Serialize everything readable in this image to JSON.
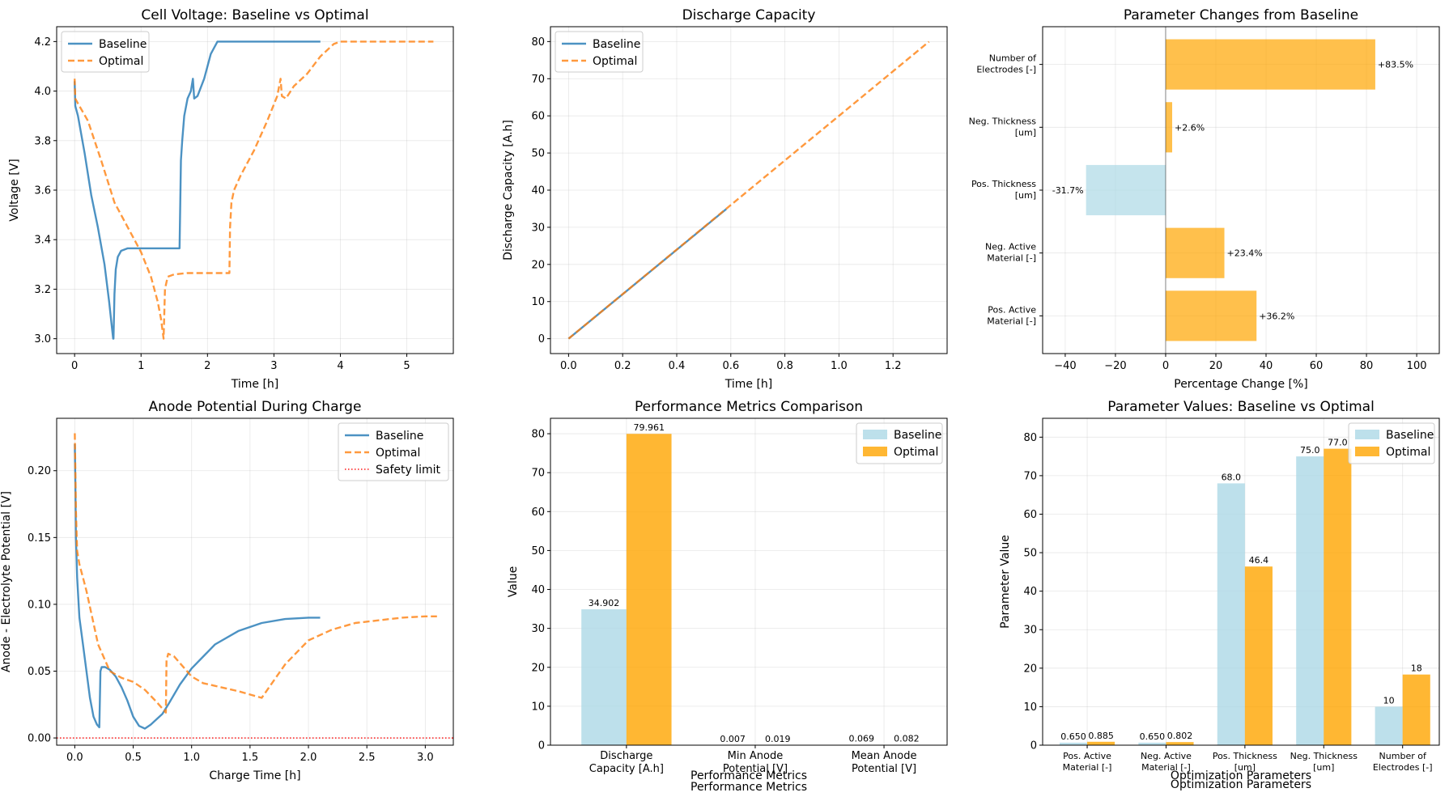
{
  "colors": {
    "baseline_line": "#1f77b4",
    "optimal_line": "#ff7f0e",
    "bar_base": "#add8e6",
    "bar_opt": "#ffa500",
    "safety": "#ff0000"
  },
  "chart_data": [
    {
      "id": "cell-voltage",
      "type": "line",
      "title": "Cell Voltage: Baseline vs Optimal",
      "xlabel": "Time [h]",
      "ylabel": "Voltage [V]",
      "xlim": [
        -0.27,
        5.7
      ],
      "ylim": [
        2.94,
        4.26
      ],
      "xticks": [
        0,
        1,
        2,
        3,
        4,
        5
      ],
      "yticks": [
        3.0,
        3.2,
        3.4,
        3.6,
        3.8,
        4.0,
        4.2
      ],
      "ytick_labels": [
        "3.0",
        "3.2",
        "3.4",
        "3.6",
        "3.8",
        "4.0",
        "4.2"
      ],
      "legend": [
        "Baseline",
        "Optimal"
      ],
      "legend_loc": "upper-left",
      "series": [
        {
          "name": "Baseline",
          "style": "solid",
          "x": [
            0,
            0.01,
            0.05,
            0.15,
            0.25,
            0.35,
            0.45,
            0.52,
            0.56,
            0.58,
            0.585,
            0.6,
            0.62,
            0.65,
            0.7,
            0.8,
            1.0,
            1.3,
            1.58,
            1.59,
            1.6,
            1.62,
            1.65,
            1.7,
            1.75,
            1.78,
            1.8,
            1.85,
            1.95,
            2.05,
            2.15,
            2.2,
            2.5,
            3.0,
            3.7
          ],
          "y": [
            4.04,
            3.94,
            3.9,
            3.75,
            3.58,
            3.45,
            3.3,
            3.15,
            3.05,
            3.0,
            3.0,
            3.18,
            3.28,
            3.33,
            3.355,
            3.365,
            3.365,
            3.365,
            3.365,
            3.55,
            3.72,
            3.8,
            3.9,
            3.97,
            4.0,
            4.05,
            3.97,
            3.98,
            4.05,
            4.15,
            4.2,
            4.2,
            4.2,
            4.2,
            4.2
          ]
        },
        {
          "name": "Optimal",
          "style": "dashed",
          "x": [
            0,
            0.01,
            0.05,
            0.2,
            0.4,
            0.6,
            0.8,
            1.0,
            1.15,
            1.25,
            1.3,
            1.33,
            1.34,
            1.36,
            1.4,
            1.5,
            1.7,
            2.0,
            2.33,
            2.34,
            2.36,
            2.4,
            2.5,
            2.7,
            2.9,
            3.05,
            3.1,
            3.12,
            3.18,
            3.3,
            3.5,
            3.7,
            3.9,
            4.0,
            4.3,
            5.0,
            5.4
          ],
          "y": [
            4.05,
            3.97,
            3.95,
            3.88,
            3.72,
            3.55,
            3.45,
            3.35,
            3.25,
            3.15,
            3.08,
            3.02,
            3.0,
            3.2,
            3.25,
            3.26,
            3.265,
            3.265,
            3.265,
            3.45,
            3.55,
            3.6,
            3.66,
            3.76,
            3.88,
            3.98,
            4.05,
            3.98,
            3.97,
            4.02,
            4.07,
            4.14,
            4.19,
            4.2,
            4.2,
            4.2,
            4.2
          ]
        }
      ]
    },
    {
      "id": "discharge-capacity",
      "type": "line",
      "title": "Discharge Capacity",
      "xlabel": "Time [h]",
      "ylabel": "Discharge Capacity [A.h]",
      "xlim": [
        -0.067,
        1.4
      ],
      "ylim": [
        -4,
        84
      ],
      "xticks": [
        0,
        0.2,
        0.4,
        0.6,
        0.8,
        1.0,
        1.2
      ],
      "xtick_labels": [
        "0.0",
        "0.2",
        "0.4",
        "0.6",
        "0.8",
        "1.0",
        "1.2"
      ],
      "yticks": [
        0,
        10,
        20,
        30,
        40,
        50,
        60,
        70,
        80
      ],
      "legend": [
        "Baseline",
        "Optimal"
      ],
      "legend_loc": "upper-left",
      "series": [
        {
          "name": "Baseline",
          "style": "solid",
          "x": [
            0,
            0.583
          ],
          "y": [
            0,
            34.902
          ]
        },
        {
          "name": "Optimal",
          "style": "dashed",
          "x": [
            0,
            1.333
          ],
          "y": [
            0,
            79.961
          ]
        }
      ]
    },
    {
      "id": "parameter-changes",
      "type": "bar",
      "orientation": "horizontal",
      "title": "Parameter Changes from Baseline",
      "xlabel": "Percentage Change [%]",
      "ylabel": "",
      "xlim": [
        -49,
        109
      ],
      "xticks": [
        -40,
        -20,
        0,
        20,
        40,
        60,
        80,
        100
      ],
      "xtick_labels": [
        "−40",
        "−20",
        "0",
        "20",
        "40",
        "60",
        "80",
        "100"
      ],
      "categories": [
        [
          "Pos. Active",
          "Material [-]"
        ],
        [
          "Neg. Active",
          "Material [-]"
        ],
        [
          "Pos. Thickness",
          "[um]"
        ],
        [
          "Neg. Thickness",
          "[um]"
        ],
        [
          "Number of",
          "Electrodes [-]"
        ]
      ],
      "values": [
        36.2,
        23.4,
        -31.7,
        2.6,
        83.5
      ],
      "value_labels": [
        "+36.2%",
        "+23.4%",
        "-31.7%",
        "+2.6%",
        "+83.5%"
      ]
    },
    {
      "id": "anode-potential",
      "type": "line",
      "title": "Anode Potential During Charge",
      "xlabel": "Charge Time [h]",
      "ylabel": "Anode - Electrolyte Potential [V]",
      "xlim": [
        -0.155,
        3.24
      ],
      "ylim": [
        -0.0054,
        0.2392
      ],
      "xticks": [
        0,
        0.5,
        1.0,
        1.5,
        2.0,
        2.5,
        3.0
      ],
      "xtick_labels": [
        "0.0",
        "0.5",
        "1.0",
        "1.5",
        "2.0",
        "2.5",
        "3.0"
      ],
      "yticks": [
        0,
        0.05,
        0.1,
        0.15,
        0.2
      ],
      "ytick_labels": [
        "0.00",
        "0.05",
        "0.10",
        "0.15",
        "0.20"
      ],
      "legend": [
        "Baseline",
        "Optimal",
        "Safety limit"
      ],
      "legend_loc": "upper-right",
      "series": [
        {
          "name": "Baseline",
          "style": "solid",
          "x": [
            0,
            0.005,
            0.01,
            0.02,
            0.04,
            0.07,
            0.1,
            0.13,
            0.16,
            0.19,
            0.21,
            0.22,
            0.23,
            0.26,
            0.3,
            0.35,
            0.4,
            0.45,
            0.5,
            0.55,
            0.6,
            0.65,
            0.7,
            0.75,
            0.8,
            0.9,
            1.0,
            1.2,
            1.4,
            1.6,
            1.8,
            2.0,
            2.1
          ],
          "y": [
            0.22,
            0.19,
            0.15,
            0.12,
            0.09,
            0.07,
            0.05,
            0.03,
            0.016,
            0.01,
            0.008,
            0.05,
            0.053,
            0.053,
            0.051,
            0.046,
            0.038,
            0.028,
            0.016,
            0.009,
            0.007,
            0.01,
            0.014,
            0.018,
            0.025,
            0.04,
            0.052,
            0.07,
            0.08,
            0.086,
            0.089,
            0.09,
            0.09
          ]
        },
        {
          "name": "Optimal",
          "style": "dashed",
          "x": [
            0,
            0.005,
            0.01,
            0.02,
            0.04,
            0.07,
            0.1,
            0.15,
            0.2,
            0.3,
            0.4,
            0.5,
            0.6,
            0.7,
            0.78,
            0.785,
            0.8,
            0.85,
            0.9,
            1.0,
            1.1,
            1.2,
            1.4,
            1.6,
            1.8,
            2.0,
            2.2,
            2.4,
            2.6,
            2.8,
            3.0,
            3.1
          ],
          "y": [
            0.228,
            0.2,
            0.17,
            0.14,
            0.13,
            0.12,
            0.11,
            0.09,
            0.07,
            0.05,
            0.045,
            0.042,
            0.036,
            0.027,
            0.019,
            0.058,
            0.063,
            0.061,
            0.056,
            0.046,
            0.041,
            0.039,
            0.035,
            0.03,
            0.055,
            0.073,
            0.081,
            0.086,
            0.088,
            0.09,
            0.091,
            0.091
          ]
        },
        {
          "name": "Safety limit",
          "style": "dotted",
          "x": [
            -0.155,
            3.24
          ],
          "y": [
            0,
            0
          ]
        }
      ]
    },
    {
      "id": "performance-metrics",
      "type": "bar",
      "title": "Performance Metrics Comparison",
      "xlabel": "Performance Metrics",
      "ylabel": "Value",
      "ylim": [
        0,
        83.96
      ],
      "yticks": [
        0,
        10,
        20,
        30,
        40,
        50,
        60,
        70,
        80
      ],
      "categories": [
        [
          "Discharge",
          "Capacity [A.h]"
        ],
        [
          "Min Anode",
          "Potential [V]"
        ],
        [
          "Mean Anode",
          "Potential [V]"
        ]
      ],
      "series": [
        {
          "name": "Baseline",
          "values": [
            34.902,
            0.007,
            0.069
          ],
          "labels": [
            "34.902",
            "0.007",
            "0.069"
          ]
        },
        {
          "name": "Optimal",
          "values": [
            79.961,
            0.019,
            0.082
          ],
          "labels": [
            "79.961",
            "0.019",
            "0.082"
          ]
        }
      ],
      "legend": [
        "Baseline",
        "Optimal"
      ],
      "legend_loc": "upper-right"
    },
    {
      "id": "parameter-values",
      "type": "bar",
      "title": "Parameter Values: Baseline vs Optimal",
      "xlabel": "Optimization Parameters",
      "ylabel": "Parameter Value",
      "ylim": [
        0,
        84.9
      ],
      "yticks": [
        0,
        10,
        20,
        30,
        40,
        50,
        60,
        70,
        80
      ],
      "categories": [
        [
          "Pos. Active",
          "Material [-]"
        ],
        [
          "Neg. Active",
          "Material [-]"
        ],
        [
          "Pos. Thickness",
          "[um]"
        ],
        [
          "Neg. Thickness",
          "[um]"
        ],
        [
          "Number of",
          "Electrodes [-]"
        ]
      ],
      "series": [
        {
          "name": "Baseline",
          "values": [
            0.65,
            0.65,
            68.0,
            75.0,
            10
          ],
          "labels": [
            "0.650",
            "0.650",
            "68.0",
            "75.0",
            "10"
          ]
        },
        {
          "name": "Optimal",
          "values": [
            0.885,
            0.802,
            46.4,
            77.0,
            18.35
          ],
          "labels": [
            "0.885",
            "0.802",
            "46.4",
            "77.0",
            "18"
          ]
        }
      ],
      "legend": [
        "Baseline",
        "Optimal"
      ],
      "legend_loc": "upper-right"
    }
  ]
}
